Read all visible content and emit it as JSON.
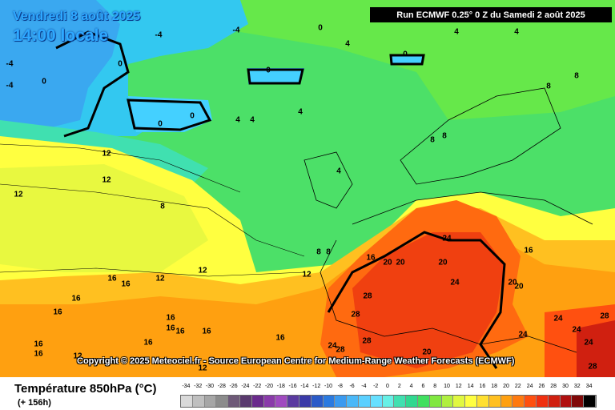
{
  "map": {
    "title_date": "Vendredi 8 août 2025",
    "title_time": "14:00 locale",
    "run_info": "Run ECMWF 0.25° 0 Z du Samedi 2 août 2025",
    "copyright": "Copyright © 2025 Meteociel.fr - Source European Centre for Medium-Range Weather Forecasts (ECMWF)",
    "isotherm_labels": [
      {
        "id": "l1",
        "text": "-4"
      },
      {
        "id": "l2",
        "text": "-4"
      },
      {
        "id": "l3",
        "text": "-4"
      },
      {
        "id": "l4",
        "text": "-4"
      },
      {
        "id": "l5",
        "text": "0"
      },
      {
        "id": "l6",
        "text": "0"
      },
      {
        "id": "l7",
        "text": "0"
      },
      {
        "id": "l8",
        "text": "0"
      },
      {
        "id": "l9",
        "text": "0"
      },
      {
        "id": "l10",
        "text": "0"
      },
      {
        "id": "l11",
        "text": "0"
      },
      {
        "id": "l12",
        "text": "4"
      },
      {
        "id": "l13",
        "text": "4"
      },
      {
        "id": "l14",
        "text": "4"
      },
      {
        "id": "l15",
        "text": "4"
      },
      {
        "id": "l16",
        "text": "4"
      },
      {
        "id": "l17",
        "text": "4"
      },
      {
        "id": "l18",
        "text": "4"
      },
      {
        "id": "l19",
        "text": "8"
      },
      {
        "id": "l20",
        "text": "8"
      },
      {
        "id": "l21",
        "text": "8"
      },
      {
        "id": "l22",
        "text": "8"
      },
      {
        "id": "l23",
        "text": "8"
      },
      {
        "id": "l24",
        "text": "8"
      },
      {
        "id": "l25",
        "text": "8"
      },
      {
        "id": "l26",
        "text": "12"
      },
      {
        "id": "l27",
        "text": "12"
      },
      {
        "id": "l28",
        "text": "12"
      },
      {
        "id": "l29",
        "text": "12"
      },
      {
        "id": "l30",
        "text": "12"
      },
      {
        "id": "l31",
        "text": "12"
      },
      {
        "id": "l32",
        "text": "12"
      },
      {
        "id": "l33",
        "text": "12"
      },
      {
        "id": "l34",
        "text": "16"
      },
      {
        "id": "l35",
        "text": "16"
      },
      {
        "id": "l36",
        "text": "16"
      },
      {
        "id": "l37",
        "text": "16"
      },
      {
        "id": "l38",
        "text": "16"
      },
      {
        "id": "l39",
        "text": "16"
      },
      {
        "id": "l40",
        "text": "16"
      },
      {
        "id": "l41",
        "text": "16"
      },
      {
        "id": "l42",
        "text": "16"
      },
      {
        "id": "l43",
        "text": "16"
      },
      {
        "id": "l44",
        "text": "16"
      },
      {
        "id": "l45",
        "text": "16"
      },
      {
        "id": "l46",
        "text": "16"
      },
      {
        "id": "l47",
        "text": "16"
      },
      {
        "id": "l48",
        "text": "20"
      },
      {
        "id": "l49",
        "text": "20"
      },
      {
        "id": "l50",
        "text": "20"
      },
      {
        "id": "l51",
        "text": "20"
      },
      {
        "id": "l52",
        "text": "20"
      },
      {
        "id": "l53",
        "text": "20"
      },
      {
        "id": "l54",
        "text": "24"
      },
      {
        "id": "l55",
        "text": "24"
      },
      {
        "id": "l56",
        "text": "24"
      },
      {
        "id": "l57",
        "text": "24"
      },
      {
        "id": "l58",
        "text": "24"
      },
      {
        "id": "l59",
        "text": "24"
      },
      {
        "id": "l60",
        "text": "24"
      },
      {
        "id": "l61",
        "text": "28"
      },
      {
        "id": "l62",
        "text": "28"
      },
      {
        "id": "l63",
        "text": "28"
      },
      {
        "id": "l64",
        "text": "28"
      },
      {
        "id": "l65",
        "text": "28"
      },
      {
        "id": "l66",
        "text": "28"
      }
    ]
  },
  "legend": {
    "title": "Température 850hPa (°C)",
    "forecast_hour": "(+ 156h)",
    "ticks": [
      "-34",
      "-32",
      "-30",
      "-28",
      "-26",
      "-24",
      "-22",
      "-20",
      "-18",
      "-16",
      "-14",
      "-12",
      "-10",
      "-8",
      "-6",
      "-4",
      "-2",
      "0",
      "2",
      "4",
      "6",
      "8",
      "10",
      "12",
      "14",
      "16",
      "18",
      "20",
      "22",
      "24",
      "26",
      "28",
      "30",
      "32",
      "34"
    ],
    "colors": [
      "#d9d9d9",
      "#bfbfbf",
      "#a6a6a6",
      "#8c8c8c",
      "#6e5a78",
      "#5a3a6e",
      "#6a2a8c",
      "#8a3aaa",
      "#a04ac0",
      "#5a3aa0",
      "#3a3aa8",
      "#2a5ac8",
      "#2a7ae0",
      "#3a9af0",
      "#4ab8f8",
      "#5ad0ff",
      "#66e0ff",
      "#66f0e6",
      "#40e0b0",
      "#30d890",
      "#40e060",
      "#80e840",
      "#b0f040",
      "#e0f840",
      "#ffff40",
      "#ffe030",
      "#ffc020",
      "#ffa010",
      "#ff7a10",
      "#ff5010",
      "#f03010",
      "#d02010",
      "#b01010",
      "#800808",
      "#000000"
    ]
  }
}
